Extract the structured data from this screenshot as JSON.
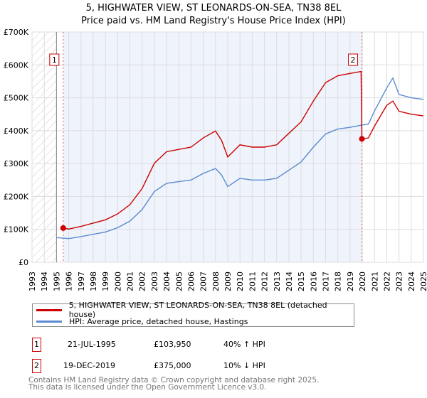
{
  "title": "5, HIGHWATER VIEW, ST LEONARDS-ON-SEA, TN38 8EL",
  "subtitle": "Price paid vs. HM Land Registry's House Price Index (HPI)",
  "chart_data": {
    "type": "line",
    "title": "5, HIGHWATER VIEW, ST LEONARDS-ON-SEA, TN38 8EL",
    "xlim": [
      1993,
      2025
    ],
    "ylim": [
      0,
      700000
    ],
    "yticks": [
      {
        "v": 0,
        "label": "£0"
      },
      {
        "v": 100000,
        "label": "£100K"
      },
      {
        "v": 200000,
        "label": "£200K"
      },
      {
        "v": 300000,
        "label": "£300K"
      },
      {
        "v": 400000,
        "label": "£400K"
      },
      {
        "v": 500000,
        "label": "£500K"
      },
      {
        "v": 600000,
        "label": "£600K"
      },
      {
        "v": 700000,
        "label": "£700K"
      }
    ],
    "xticks": [
      "1993",
      "1994",
      "1995",
      "1996",
      "1997",
      "1998",
      "1999",
      "2000",
      "2001",
      "2002",
      "2003",
      "2004",
      "2005",
      "2006",
      "2007",
      "2008",
      "2009",
      "2010",
      "2011",
      "2012",
      "2013",
      "2014",
      "2015",
      "2016",
      "2017",
      "2018",
      "2019",
      "2020",
      "2021",
      "2022",
      "2023",
      "2024",
      "2025"
    ],
    "series": [
      {
        "name": "5, HIGHWATER VIEW, ST LEONARDS-ON-SEA, TN38 8EL (detached house)",
        "color": "#cc0000",
        "x": [
          1995.55,
          1996,
          1997,
          1998,
          1999,
          2000,
          2001,
          2002,
          2003,
          2004,
          2005,
          2006,
          2007,
          2008,
          2008.5,
          2009,
          2010,
          2011,
          2012,
          2013,
          2014,
          2015,
          2016,
          2017,
          2018,
          2019,
          2019.9,
          2019.97,
          2020.5,
          2021,
          2022,
          2022.5,
          2023,
          2024,
          2025
        ],
        "values": [
          103950,
          101000,
          109000,
          119000,
          129000,
          147000,
          175000,
          224000,
          301000,
          336000,
          343000,
          350000,
          378000,
          399000,
          370000,
          320000,
          357000,
          350000,
          350000,
          357000,
          392000,
          427000,
          490000,
          546000,
          567000,
          574000,
          580000,
          375000,
          378000,
          414000,
          477000,
          490000,
          459000,
          450000,
          445000
        ]
      },
      {
        "name": "HPI: Average price, detached house, Hastings",
        "color": "#5b8bd0",
        "x": [
          1995,
          1996,
          1997,
          1998,
          1999,
          2000,
          2001,
          2002,
          2003,
          2004,
          2005,
          2006,
          2007,
          2008,
          2008.5,
          2009,
          2010,
          2011,
          2012,
          2013,
          2014,
          2015,
          2016,
          2017,
          2018,
          2019,
          2019.97,
          2020.5,
          2021,
          2022,
          2022.5,
          2023,
          2024,
          2025
        ],
        "values": [
          75000,
          72000,
          78000,
          85000,
          92000,
          105000,
          125000,
          160000,
          215000,
          240000,
          245000,
          250000,
          270000,
          285000,
          265000,
          230000,
          255000,
          250000,
          250000,
          255000,
          280000,
          305000,
          350000,
          390000,
          405000,
          410000,
          417000,
          420000,
          460000,
          530000,
          560000,
          510000,
          500000,
          495000
        ]
      }
    ],
    "annotations": [
      {
        "label": "1",
        "x": 1995.55,
        "value": 103950
      },
      {
        "label": "2",
        "x": 2019.97,
        "value": 375000
      }
    ],
    "legend": "below"
  },
  "legend": {
    "red": "5, HIGHWATER VIEW, ST LEONARDS-ON-SEA, TN38 8EL (detached house)",
    "blue": "HPI: Average price, detached house, Hastings"
  },
  "sales": [
    {
      "num": "1",
      "date": "21-JUL-1995",
      "price": "£103,950",
      "hpi": "40% ↑ HPI"
    },
    {
      "num": "2",
      "date": "19-DEC-2019",
      "price": "£375,000",
      "hpi": "10% ↓ HPI"
    }
  ],
  "footer": [
    "Contains HM Land Registry data © Crown copyright and database right 2025.",
    "This data is licensed under the Open Government Licence v3.0."
  ]
}
